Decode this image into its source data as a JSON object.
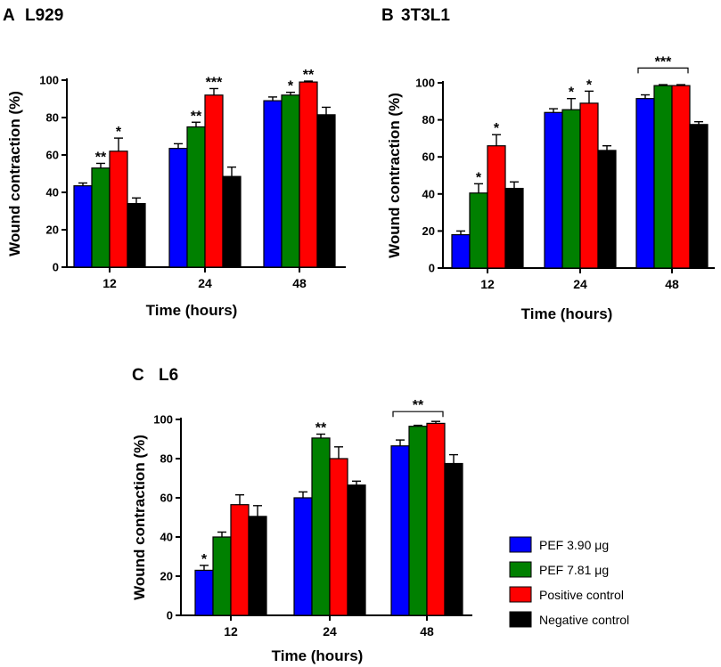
{
  "figure": {
    "legend": {
      "entries": [
        {
          "label": "PEF 3.90 μg",
          "color": "#0000ff"
        },
        {
          "label": "PEF 7.81 μg",
          "color": "#008000"
        },
        {
          "label": "Positive control",
          "color": "#ff0000"
        },
        {
          "label": "Negative control",
          "color": "#000000"
        }
      ]
    }
  },
  "chart_data": [
    {
      "type": "bar",
      "panel_letter": "A",
      "title": "L929",
      "xlabel": "Time (hours)",
      "ylabel": "Wound contraction (%)",
      "categories": [
        "12",
        "24",
        "48"
      ],
      "ylim": [
        0,
        100
      ],
      "yticks": [
        "0",
        "20",
        "40",
        "60",
        "80",
        "100"
      ],
      "series": [
        {
          "name": "PEF 3.90 μg",
          "color": "#0000ff",
          "values": [
            43.5,
            63.5,
            89
          ],
          "errors": [
            1.5,
            2.5,
            2
          ]
        },
        {
          "name": "PEF 7.81 μg",
          "color": "#008000",
          "values": [
            53,
            75,
            92
          ],
          "errors": [
            2.5,
            2.5,
            1.5
          ]
        },
        {
          "name": "Positive control",
          "color": "#ff0000",
          "values": [
            62,
            92,
            99
          ],
          "errors": [
            7,
            3.5,
            0.5
          ]
        },
        {
          "name": "Negative control",
          "color": "#000000",
          "values": [
            34,
            48.5,
            81.5
          ],
          "errors": [
            3,
            5,
            4
          ]
        }
      ],
      "significance": [
        {
          "category": 0,
          "series": 1,
          "label": "**"
        },
        {
          "category": 0,
          "series": 2,
          "label": "*"
        },
        {
          "category": 1,
          "series": 1,
          "label": "**"
        },
        {
          "category": 1,
          "series": 2,
          "label": "***"
        },
        {
          "category": 2,
          "series": 1,
          "label": "*"
        },
        {
          "category": 2,
          "series": 2,
          "label": "**"
        }
      ],
      "brackets": []
    },
    {
      "type": "bar",
      "panel_letter": "B",
      "title": "3T3L1",
      "xlabel": "Time (hours)",
      "ylabel": "Wound contraction (%)",
      "categories": [
        "12",
        "24",
        "48"
      ],
      "ylim": [
        0,
        100
      ],
      "yticks": [
        "0",
        "20",
        "40",
        "60",
        "80",
        "100"
      ],
      "series": [
        {
          "name": "PEF 3.90 μg",
          "color": "#0000ff",
          "values": [
            18,
            84,
            91.5
          ],
          "errors": [
            2,
            2,
            2
          ]
        },
        {
          "name": "PEF 7.81 μg",
          "color": "#008000",
          "values": [
            40.5,
            85.5,
            98.5
          ],
          "errors": [
            5,
            6,
            0.5
          ]
        },
        {
          "name": "Positive control",
          "color": "#ff0000",
          "values": [
            66,
            89,
            98.5
          ],
          "errors": [
            6,
            6.5,
            0.5
          ]
        },
        {
          "name": "Negative control",
          "color": "#000000",
          "values": [
            43,
            63.5,
            77.5
          ],
          "errors": [
            3.5,
            2.5,
            1.5
          ]
        }
      ],
      "significance": [
        {
          "category": 0,
          "series": 1,
          "label": "*"
        },
        {
          "category": 0,
          "series": 2,
          "label": "*"
        },
        {
          "category": 1,
          "series": 1,
          "label": "*"
        },
        {
          "category": 1,
          "series": 2,
          "label": "*"
        }
      ],
      "brackets": [
        {
          "category": 2,
          "from_series": 0,
          "to_series": 2,
          "value": 108,
          "label": "***"
        }
      ]
    },
    {
      "type": "bar",
      "panel_letter": "C",
      "title": "L6",
      "xlabel": "Time (hours)",
      "ylabel": "Wound contraction (%)",
      "categories": [
        "12",
        "24",
        "48"
      ],
      "ylim": [
        0,
        100
      ],
      "yticks": [
        "0",
        "20",
        "40",
        "60",
        "80",
        "100"
      ],
      "series": [
        {
          "name": "PEF 3.90 μg",
          "color": "#0000ff",
          "values": [
            23,
            60,
            86.5
          ],
          "errors": [
            2.5,
            3,
            3
          ]
        },
        {
          "name": "PEF 7.81 μg",
          "color": "#008000",
          "values": [
            40,
            90.5,
            96.5
          ],
          "errors": [
            2.5,
            2,
            0.5
          ]
        },
        {
          "name": "Positive control",
          "color": "#ff0000",
          "values": [
            56.5,
            80,
            98
          ],
          "errors": [
            5,
            6,
            1
          ]
        },
        {
          "name": "Negative control",
          "color": "#000000",
          "values": [
            50.5,
            66.5,
            77.5
          ],
          "errors": [
            5.5,
            2,
            4.5
          ]
        }
      ],
      "significance": [
        {
          "category": 0,
          "series": 0,
          "label": "*"
        },
        {
          "category": 1,
          "series": 1,
          "label": "**"
        }
      ],
      "brackets": [
        {
          "category": 2,
          "from_series": 0,
          "to_series": 2,
          "value": 104,
          "label": "**"
        }
      ]
    }
  ]
}
